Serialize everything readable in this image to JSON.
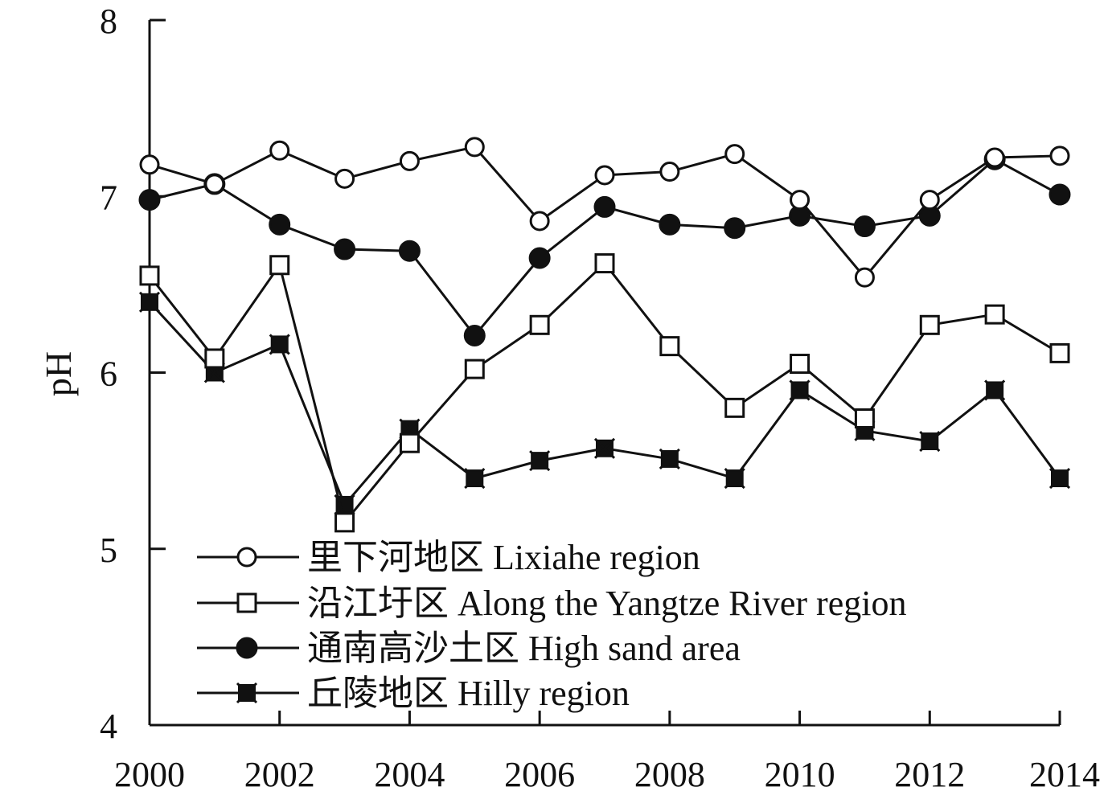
{
  "chart_data": {
    "type": "line",
    "x": [
      2000,
      2001,
      2002,
      2003,
      2004,
      2005,
      2006,
      2007,
      2008,
      2009,
      2010,
      2011,
      2012,
      2013,
      2014
    ],
    "xticks": [
      2000,
      2002,
      2004,
      2006,
      2008,
      2010,
      2012,
      2014
    ],
    "xlim": [
      2000,
      2014
    ],
    "yticks": [
      4,
      5,
      6,
      7,
      8
    ],
    "ylim": [
      4,
      8
    ],
    "xlabel": "",
    "ylabel": "pH",
    "legend_position": "bottom-left",
    "series": [
      {
        "name": "里下河地区 Lixiahe region",
        "marker": "open-circle",
        "values": [
          7.18,
          7.07,
          7.26,
          7.1,
          7.2,
          7.28,
          6.86,
          7.12,
          7.14,
          7.24,
          6.98,
          6.54,
          6.98,
          7.22,
          7.23
        ]
      },
      {
        "name": "沿江圩区 Along the Yangtze River region",
        "marker": "open-square",
        "values": [
          6.55,
          6.08,
          6.61,
          5.15,
          5.6,
          6.02,
          6.27,
          6.62,
          6.15,
          5.8,
          6.05,
          5.74,
          6.27,
          6.33,
          6.11
        ]
      },
      {
        "name": "通南高沙土区 High sand area",
        "marker": "filled-circle",
        "values": [
          6.98,
          7.07,
          6.84,
          6.7,
          6.69,
          6.21,
          6.65,
          6.94,
          6.84,
          6.82,
          6.89,
          6.83,
          6.89,
          7.21,
          7.01
        ]
      },
      {
        "name": "丘陵地区 Hilly region",
        "marker": "filled-square",
        "values": [
          6.4,
          6.0,
          6.16,
          5.25,
          5.68,
          5.4,
          5.5,
          5.57,
          5.51,
          5.4,
          5.9,
          5.67,
          5.61,
          5.9,
          5.4
        ]
      }
    ]
  }
}
